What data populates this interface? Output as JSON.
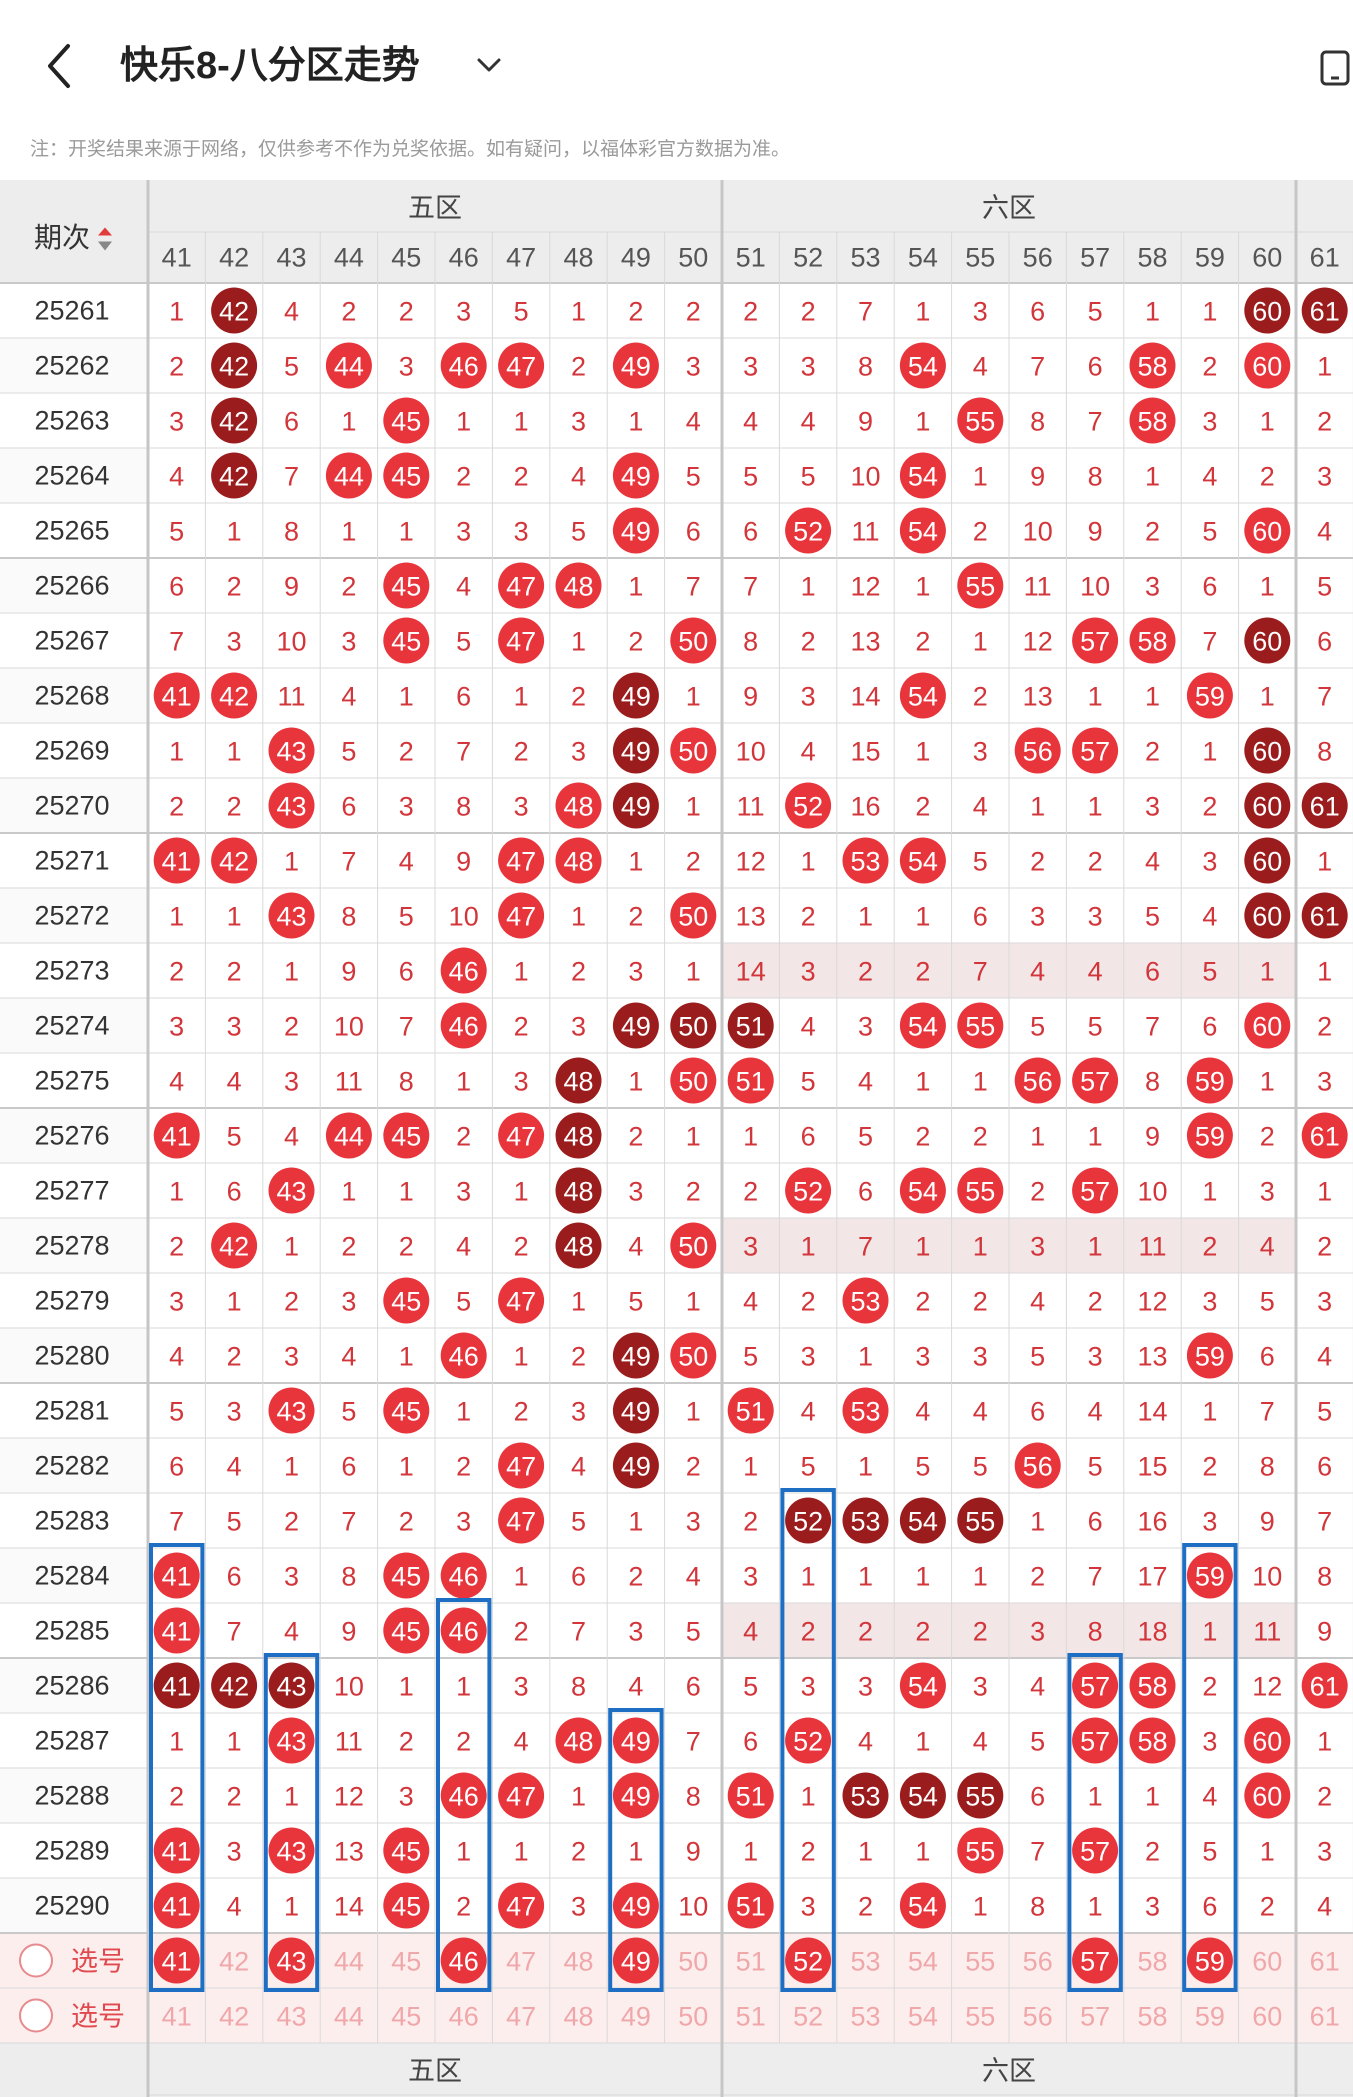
{
  "header": {
    "title": "快乐8-八分区走势",
    "notice": "注：开奖结果来源于网络，仅供参考不作为兑奖依据。如有疑问，以福体彩官方数据为准。"
  },
  "grid": {
    "period_label": "期次",
    "zones": [
      "五区",
      "六区"
    ],
    "columns": [
      "41",
      "42",
      "43",
      "44",
      "45",
      "46",
      "47",
      "48",
      "49",
      "50",
      "51",
      "52",
      "53",
      "54",
      "55",
      "56",
      "57",
      "58",
      "59",
      "60",
      "61"
    ],
    "periods": [
      "25261",
      "25262",
      "25263",
      "25264",
      "25265",
      "25266",
      "25267",
      "25268",
      "25269",
      "25270",
      "25271",
      "25272",
      "25273",
      "25274",
      "25275",
      "25276",
      "25277",
      "25278",
      "25279",
      "25280",
      "25281",
      "25282",
      "25283",
      "25284",
      "25285",
      "25286",
      "25287",
      "25288",
      "25289",
      "25290"
    ],
    "rows": [
      [
        "1",
        "42",
        "4",
        "2",
        "2",
        "3",
        "5",
        "1",
        "2",
        "2",
        "2",
        "2",
        "7",
        "1",
        "3",
        "6",
        "5",
        "1",
        "1",
        "60",
        "61"
      ],
      [
        "2",
        "42",
        "5",
        "44",
        "3",
        "46",
        "47",
        "2",
        "49",
        "3",
        "3",
        "3",
        "8",
        "54",
        "4",
        "7",
        "6",
        "58",
        "2",
        "60",
        "1"
      ],
      [
        "3",
        "42",
        "6",
        "1",
        "45",
        "1",
        "1",
        "3",
        "1",
        "4",
        "4",
        "4",
        "9",
        "1",
        "55",
        "8",
        "7",
        "58",
        "3",
        "1",
        "2"
      ],
      [
        "4",
        "42",
        "7",
        "44",
        "45",
        "2",
        "2",
        "4",
        "49",
        "5",
        "5",
        "5",
        "10",
        "54",
        "1",
        "9",
        "8",
        "1",
        "4",
        "2",
        "3"
      ],
      [
        "5",
        "1",
        "8",
        "1",
        "1",
        "3",
        "3",
        "5",
        "49",
        "6",
        "6",
        "52",
        "11",
        "54",
        "2",
        "10",
        "9",
        "2",
        "5",
        "60",
        "4"
      ],
      [
        "6",
        "2",
        "9",
        "2",
        "45",
        "4",
        "47",
        "48",
        "1",
        "7",
        "7",
        "1",
        "12",
        "1",
        "55",
        "11",
        "10",
        "3",
        "6",
        "1",
        "5"
      ],
      [
        "7",
        "3",
        "10",
        "3",
        "45",
        "5",
        "47",
        "1",
        "2",
        "50",
        "8",
        "2",
        "13",
        "2",
        "1",
        "12",
        "57",
        "58",
        "7",
        "60",
        "6"
      ],
      [
        "41",
        "42",
        "11",
        "4",
        "1",
        "6",
        "1",
        "2",
        "49",
        "1",
        "9",
        "3",
        "14",
        "54",
        "2",
        "13",
        "1",
        "1",
        "59",
        "1",
        "7"
      ],
      [
        "1",
        "1",
        "43",
        "5",
        "2",
        "7",
        "2",
        "3",
        "49",
        "50",
        "10",
        "4",
        "15",
        "1",
        "3",
        "56",
        "57",
        "2",
        "1",
        "60",
        "8"
      ],
      [
        "2",
        "2",
        "43",
        "6",
        "3",
        "8",
        "3",
        "48",
        "49",
        "1",
        "11",
        "52",
        "16",
        "2",
        "4",
        "1",
        "1",
        "3",
        "2",
        "60",
        "61"
      ],
      [
        "41",
        "42",
        "1",
        "7",
        "4",
        "9",
        "47",
        "48",
        "1",
        "2",
        "12",
        "1",
        "53",
        "54",
        "5",
        "2",
        "2",
        "4",
        "3",
        "60",
        "1"
      ],
      [
        "1",
        "1",
        "43",
        "8",
        "5",
        "10",
        "47",
        "1",
        "2",
        "50",
        "13",
        "2",
        "1",
        "1",
        "6",
        "3",
        "3",
        "5",
        "4",
        "60",
        "61"
      ],
      [
        "2",
        "2",
        "1",
        "9",
        "6",
        "46",
        "1",
        "2",
        "3",
        "1",
        "14",
        "3",
        "2",
        "2",
        "7",
        "4",
        "4",
        "6",
        "5",
        "1",
        "1"
      ],
      [
        "3",
        "3",
        "2",
        "10",
        "7",
        "46",
        "2",
        "3",
        "49",
        "50",
        "51",
        "4",
        "3",
        "54",
        "55",
        "5",
        "5",
        "7",
        "6",
        "60",
        "2"
      ],
      [
        "4",
        "4",
        "3",
        "11",
        "8",
        "1",
        "3",
        "48",
        "1",
        "50",
        "51",
        "5",
        "4",
        "1",
        "1",
        "56",
        "57",
        "8",
        "59",
        "1",
        "3"
      ],
      [
        "41",
        "5",
        "4",
        "44",
        "45",
        "2",
        "47",
        "48",
        "2",
        "1",
        "1",
        "6",
        "5",
        "2",
        "2",
        "1",
        "1",
        "9",
        "59",
        "2",
        "61"
      ],
      [
        "1",
        "6",
        "43",
        "1",
        "1",
        "3",
        "1",
        "48",
        "3",
        "2",
        "2",
        "52",
        "6",
        "54",
        "55",
        "2",
        "57",
        "10",
        "1",
        "3",
        "1"
      ],
      [
        "2",
        "42",
        "1",
        "2",
        "2",
        "4",
        "2",
        "48",
        "4",
        "50",
        "3",
        "1",
        "7",
        "1",
        "1",
        "3",
        "1",
        "11",
        "2",
        "4",
        "2"
      ],
      [
        "3",
        "1",
        "2",
        "3",
        "45",
        "5",
        "47",
        "1",
        "5",
        "1",
        "4",
        "2",
        "53",
        "2",
        "2",
        "4",
        "2",
        "12",
        "3",
        "5",
        "3"
      ],
      [
        "4",
        "2",
        "3",
        "4",
        "1",
        "46",
        "1",
        "2",
        "49",
        "50",
        "5",
        "3",
        "1",
        "3",
        "3",
        "5",
        "3",
        "13",
        "59",
        "6",
        "4"
      ],
      [
        "5",
        "3",
        "43",
        "5",
        "45",
        "1",
        "2",
        "3",
        "49",
        "1",
        "51",
        "4",
        "53",
        "4",
        "4",
        "6",
        "4",
        "14",
        "1",
        "7",
        "5"
      ],
      [
        "6",
        "4",
        "1",
        "6",
        "1",
        "2",
        "47",
        "4",
        "49",
        "2",
        "1",
        "5",
        "1",
        "5",
        "5",
        "56",
        "5",
        "15",
        "2",
        "8",
        "6"
      ],
      [
        "7",
        "5",
        "2",
        "7",
        "2",
        "3",
        "47",
        "5",
        "1",
        "3",
        "2",
        "52",
        "53",
        "54",
        "55",
        "1",
        "6",
        "16",
        "3",
        "9",
        "7"
      ],
      [
        "41",
        "6",
        "3",
        "8",
        "45",
        "46",
        "1",
        "6",
        "2",
        "4",
        "3",
        "1",
        "1",
        "1",
        "1",
        "2",
        "7",
        "17",
        "59",
        "10",
        "8"
      ],
      [
        "41",
        "7",
        "4",
        "9",
        "45",
        "46",
        "2",
        "7",
        "3",
        "5",
        "4",
        "2",
        "2",
        "2",
        "2",
        "3",
        "8",
        "18",
        "1",
        "11",
        "9"
      ],
      [
        "41",
        "42",
        "43",
        "10",
        "1",
        "1",
        "3",
        "8",
        "4",
        "6",
        "5",
        "3",
        "3",
        "54",
        "3",
        "4",
        "57",
        "58",
        "2",
        "12",
        "61"
      ],
      [
        "1",
        "1",
        "43",
        "11",
        "2",
        "2",
        "4",
        "48",
        "49",
        "7",
        "6",
        "52",
        "4",
        "1",
        "4",
        "5",
        "57",
        "58",
        "3",
        "60",
        "1"
      ],
      [
        "2",
        "2",
        "1",
        "12",
        "3",
        "46",
        "47",
        "1",
        "49",
        "8",
        "51",
        "1",
        "53",
        "54",
        "55",
        "6",
        "1",
        "1",
        "4",
        "60",
        "2"
      ],
      [
        "41",
        "3",
        "43",
        "13",
        "45",
        "1",
        "1",
        "2",
        "1",
        "9",
        "1",
        "2",
        "1",
        "1",
        "55",
        "7",
        "57",
        "2",
        "5",
        "1",
        "3"
      ],
      [
        "41",
        "4",
        "1",
        "14",
        "45",
        "2",
        "47",
        "3",
        "49",
        "10",
        "51",
        "3",
        "2",
        "54",
        "1",
        "8",
        "1",
        "3",
        "6",
        "2",
        "4"
      ]
    ],
    "dark_cells": [
      "25261-42",
      "25262-42",
      "25263-42",
      "25264-42",
      "25261-60",
      "25261-61",
      "25267-60",
      "25268-49",
      "25269-49",
      "25269-60",
      "25270-49",
      "25270-60",
      "25270-61",
      "25271-60",
      "25272-60",
      "25272-61",
      "25274-49",
      "25274-50",
      "25274-51",
      "25275-48",
      "25276-48",
      "25277-48",
      "25278-48",
      "25280-49",
      "25281-49",
      "25282-49",
      "25283-52",
      "25283-53",
      "25283-54",
      "25283-55",
      "25286-41",
      "25286-42",
      "25286-43",
      "25288-53",
      "25288-54",
      "25288-55"
    ],
    "select_label": "选号",
    "select_row1": [
      "41",
      "42",
      "43",
      "44",
      "45",
      "46",
      "47",
      "48",
      "49",
      "50",
      "51",
      "52",
      "53",
      "54",
      "55",
      "56",
      "57",
      "58",
      "59",
      "60",
      "61"
    ],
    "select_row1_picked": [
      "41",
      "43",
      "46",
      "49",
      "52",
      "57",
      "59"
    ],
    "select_row2": [
      "41",
      "42",
      "43",
      "44",
      "45",
      "46",
      "47",
      "48",
      "49",
      "50",
      "51",
      "52",
      "53",
      "54",
      "55",
      "56",
      "57",
      "58",
      "59",
      "60",
      "61"
    ],
    "footer_zones": [
      "五区",
      "六区"
    ],
    "footer_label": "-",
    "highlight_boxes": [
      {
        "col": "41",
        "from": "25284",
        "to": "选号"
      },
      {
        "col": "43",
        "from": "25286",
        "to": "选号"
      },
      {
        "col": "46",
        "from": "25285",
        "to": "选号"
      },
      {
        "col": "49",
        "from": "25287",
        "to": "选号"
      },
      {
        "col": "52",
        "from": "25283",
        "to": "选号"
      },
      {
        "col": "57",
        "from": "25286",
        "to": "选号"
      },
      {
        "col": "59",
        "from": "25284",
        "to": "选号"
      }
    ],
    "shaded_rows": [
      "25273",
      "25278",
      "25285"
    ],
    "colors": {
      "hit": "#e8353c",
      "dark": "#9b1c1c",
      "miss": "#d2353a",
      "box": "#1e6fc4",
      "grid": "#d9d9d9",
      "zone_sep": "#c6c6c6",
      "header_bg": "#ededed",
      "select_bg": "#fdeeee",
      "faint": "#f0a7aa",
      "period_text": "#333333",
      "sort_up": "#e23b3b",
      "sort_down": "#888888"
    }
  }
}
